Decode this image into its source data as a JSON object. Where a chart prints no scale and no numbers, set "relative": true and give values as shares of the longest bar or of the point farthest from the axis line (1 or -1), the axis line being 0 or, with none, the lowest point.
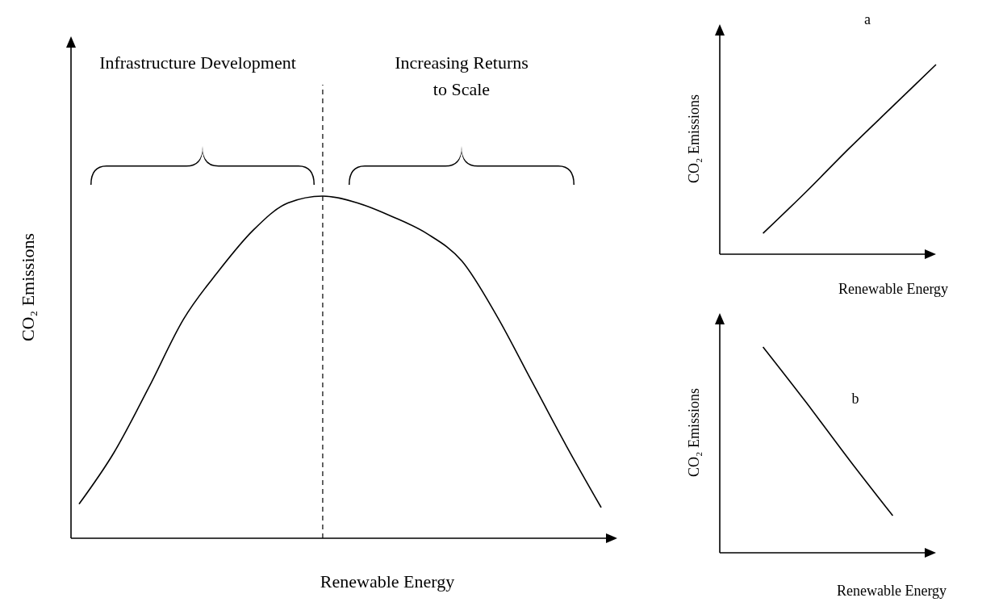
{
  "chart_data": [
    {
      "type": "line",
      "relative": true,
      "xlabel": "Renewable Energy",
      "ylabel": "CO₂ Emissions",
      "categories": [
        null,
        null,
        null,
        null,
        null,
        null,
        null,
        null,
        null,
        null,
        null,
        null,
        null,
        null,
        null,
        null
      ],
      "series": [
        {
          "color": "#000000",
          "values": [
            0.1,
            0.25,
            0.44,
            0.64,
            0.78,
            0.9,
            0.98,
            1,
            0.98,
            0.94,
            0.89,
            0.81,
            0.65,
            0.46,
            0.27,
            0.09
          ]
        }
      ],
      "annotations": [
        "Infrastructure Development",
        "Increasing Returns to Scale"
      ],
      "marker": "none",
      "line_style": "solid"
    },
    {
      "type": "line",
      "relative": true,
      "xlabel": "Renewable Energy",
      "ylabel": "CO₂ Emissions",
      "categories": [
        null,
        null,
        null,
        null,
        null,
        null
      ],
      "series": [
        {
          "color": "#000000",
          "values": [
            null,
            0.11,
            0.33,
            0.56,
            0.78,
            1
          ]
        }
      ],
      "annotations": [
        "a"
      ],
      "marker": "none",
      "line_style": "solid"
    },
    {
      "type": "line",
      "relative": true,
      "xlabel": "Renewable Energy",
      "ylabel": "CO₂ Emissions",
      "categories": [
        null,
        null,
        null,
        null,
        null,
        null
      ],
      "series": [
        {
          "color": "#000000",
          "values": [
            null,
            1,
            0.73,
            0.45,
            0.18,
            null
          ]
        }
      ],
      "annotations": [
        "b"
      ],
      "marker": "none",
      "line_style": "solid"
    }
  ]
}
